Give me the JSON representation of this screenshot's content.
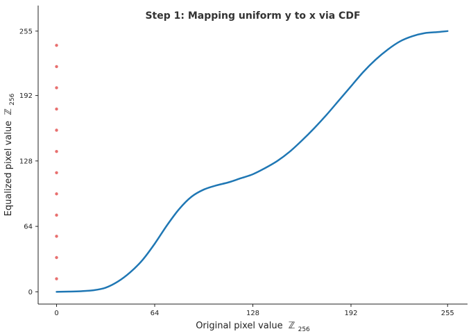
{
  "chart_data": {
    "type": "line",
    "title": "Step 1: Mapping uniform y to x via CDF",
    "xlabel": "Original pixel value",
    "ylabel": "Equalized pixel value",
    "label_symbol": "ℤ",
    "label_subscript": "256",
    "xlim": [
      -12,
      268
    ],
    "ylim": [
      -12,
      280
    ],
    "xticks": [
      0,
      64,
      128,
      192,
      255
    ],
    "yticks": [
      0,
      64,
      128,
      192,
      255
    ],
    "grid": false,
    "series": [
      {
        "color": "#1f77b4",
        "x": [
          0,
          8,
          16,
          24,
          32,
          40,
          48,
          56,
          64,
          72,
          80,
          88,
          96,
          104,
          112,
          120,
          128,
          136,
          144,
          152,
          160,
          168,
          176,
          184,
          192,
          200,
          208,
          216,
          224,
          232,
          240,
          248,
          255
        ],
        "y": [
          0,
          0.2,
          0.6,
          1.5,
          4,
          10,
          19,
          31,
          47,
          65,
          81,
          93,
          100,
          104,
          107,
          111,
          115,
          121,
          128,
          137,
          148,
          160,
          173,
          187,
          201,
          215,
          227,
          237,
          245,
          250,
          253,
          254,
          255
        ]
      },
      {
        "color": "#e45756",
        "marker": "point",
        "x": [
          0,
          0,
          0,
          0,
          0,
          0,
          0,
          0,
          0,
          0,
          0,
          0
        ],
        "y": [
          12.75,
          33.5,
          54.3,
          75.0,
          95.8,
          116.5,
          137.3,
          158.1,
          178.8,
          199.6,
          220.3,
          241.1
        ]
      }
    ],
    "axis_color": "#222222"
  }
}
